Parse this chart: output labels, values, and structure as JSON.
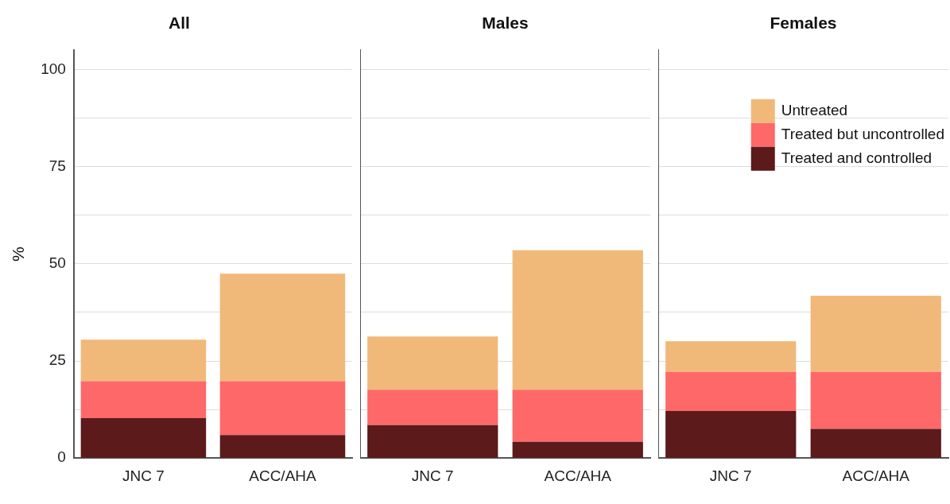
{
  "chart_data": [
    {
      "type": "bar",
      "title": "All",
      "ylabel": "%",
      "categories": [
        "JNC 7",
        "ACC/AHA"
      ],
      "stacked": true,
      "ylim": [
        0,
        105
      ],
      "yticks": [
        0,
        {
          "value": 12.5,
          "label": null
        },
        25,
        {
          "value": 37.5,
          "label": null
        },
        50,
        {
          "value": 62.5,
          "label": null
        },
        75,
        {
          "value": 87.5,
          "label": null
        },
        100
      ],
      "grid": "y",
      "legend": false,
      "series": [
        {
          "color": "#5c1a1a",
          "values": [
            10.3,
            5.9
          ]
        },
        {
          "color": "#fe6868",
          "values": [
            9.5,
            13.9
          ]
        },
        {
          "color": "#f0b97a",
          "values": [
            10.7,
            27.7
          ]
        }
      ]
    },
    {
      "type": "bar",
      "title": "Males",
      "categories": [
        "JNC 7",
        "ACC/AHA"
      ],
      "stacked": true,
      "ylim": [
        0,
        105
      ],
      "yticks": [
        0,
        {
          "value": 12.5,
          "label": null
        },
        25,
        {
          "value": 37.5,
          "label": null
        },
        50,
        {
          "value": 62.5,
          "label": null
        },
        75,
        {
          "value": 87.5,
          "label": null
        },
        100
      ],
      "grid": "y",
      "legend": false,
      "tick_labels": "x",
      "series": [
        {
          "color": "#5c1a1a",
          "values": [
            8.5,
            4.2
          ]
        },
        {
          "color": "#fe6868",
          "values": [
            9.1,
            13.4
          ]
        },
        {
          "color": "#f0b97a",
          "values": [
            13.7,
            35.9
          ]
        }
      ]
    },
    {
      "type": "bar",
      "title": "Females",
      "categories": [
        "JNC 7",
        "ACC/AHA"
      ],
      "stacked": true,
      "ylim": [
        0,
        105
      ],
      "yticks": [
        0,
        {
          "value": 12.5,
          "label": null
        },
        25,
        {
          "value": 37.5,
          "label": null
        },
        50,
        {
          "value": 62.5,
          "label": null
        },
        75,
        {
          "value": 87.5,
          "label": null
        },
        100
      ],
      "grid": "y",
      "legend": "top right",
      "tick_labels": "x",
      "series": [
        {
          "name": "Treated and controlled",
          "color": "#5c1a1a",
          "values": [
            12.1,
            7.5
          ]
        },
        {
          "name": "Treated but uncontrolled",
          "color": "#fe6868",
          "values": [
            10.1,
            14.7
          ]
        },
        {
          "name": "Untreated",
          "color": "#f0b97a",
          "values": [
            7.9,
            19.6
          ]
        }
      ]
    }
  ]
}
